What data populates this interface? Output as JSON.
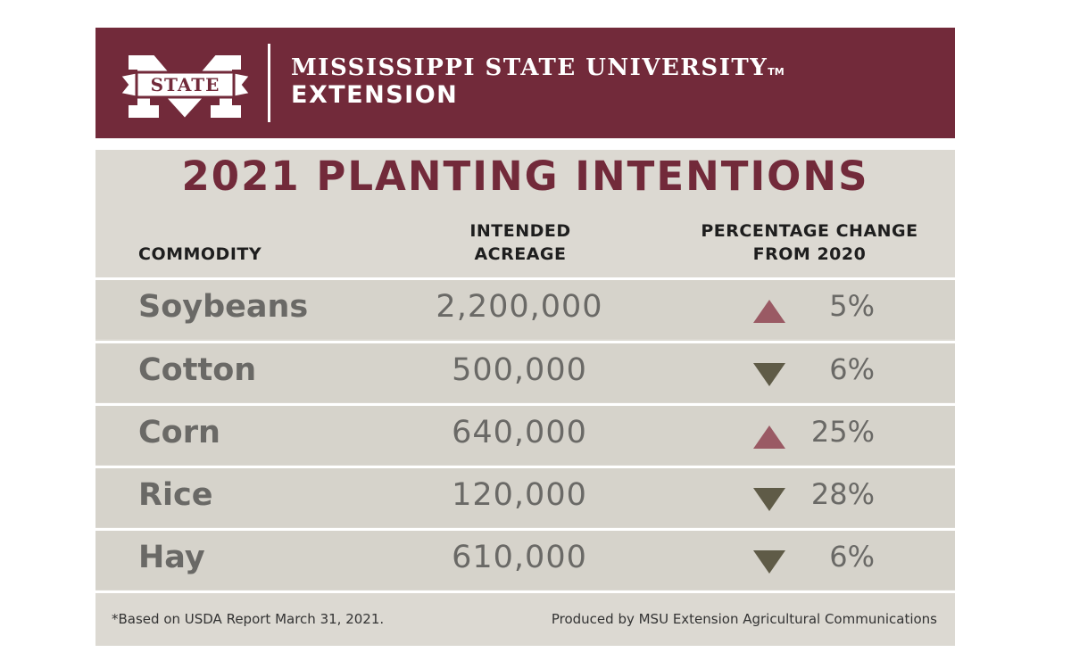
{
  "header": {
    "logo_text": "STATE",
    "brand_line1": "MISSISSIPPI STATE UNIVERSITY",
    "brand_tm": "TM",
    "brand_line2": "EXTENSION"
  },
  "title": "2021 PLANTING INTENTIONS",
  "columns": {
    "commodity": "COMMODITY",
    "acreage_line1": "INTENDED",
    "acreage_line2": "ACREAGE",
    "change_line1": "PERCENTAGE CHANGE",
    "change_line2": "FROM 2020"
  },
  "rows": [
    {
      "commodity": "Soybeans",
      "acreage": "2,200,000",
      "direction": "up",
      "change": "5%"
    },
    {
      "commodity": "Cotton",
      "acreage": "500,000",
      "direction": "down",
      "change": "6%"
    },
    {
      "commodity": "Corn",
      "acreage": "640,000",
      "direction": "up",
      "change": "25%"
    },
    {
      "commodity": "Rice",
      "acreage": "120,000",
      "direction": "down",
      "change": "28%"
    },
    {
      "commodity": "Hay",
      "acreage": "610,000",
      "direction": "down",
      "change": "6%"
    }
  ],
  "footer": {
    "note": "*Based on USDA Report March 31, 2021.",
    "credit": "Produced by MSU Extension Agricultural Communications"
  },
  "colors": {
    "maroon": "#722a3a",
    "up_arrow": "#9a5a64",
    "down_arrow": "#5f5b47",
    "panel": "#dcd9d2"
  },
  "icons": {
    "up": "triangle-up-icon",
    "down": "triangle-down-icon"
  }
}
